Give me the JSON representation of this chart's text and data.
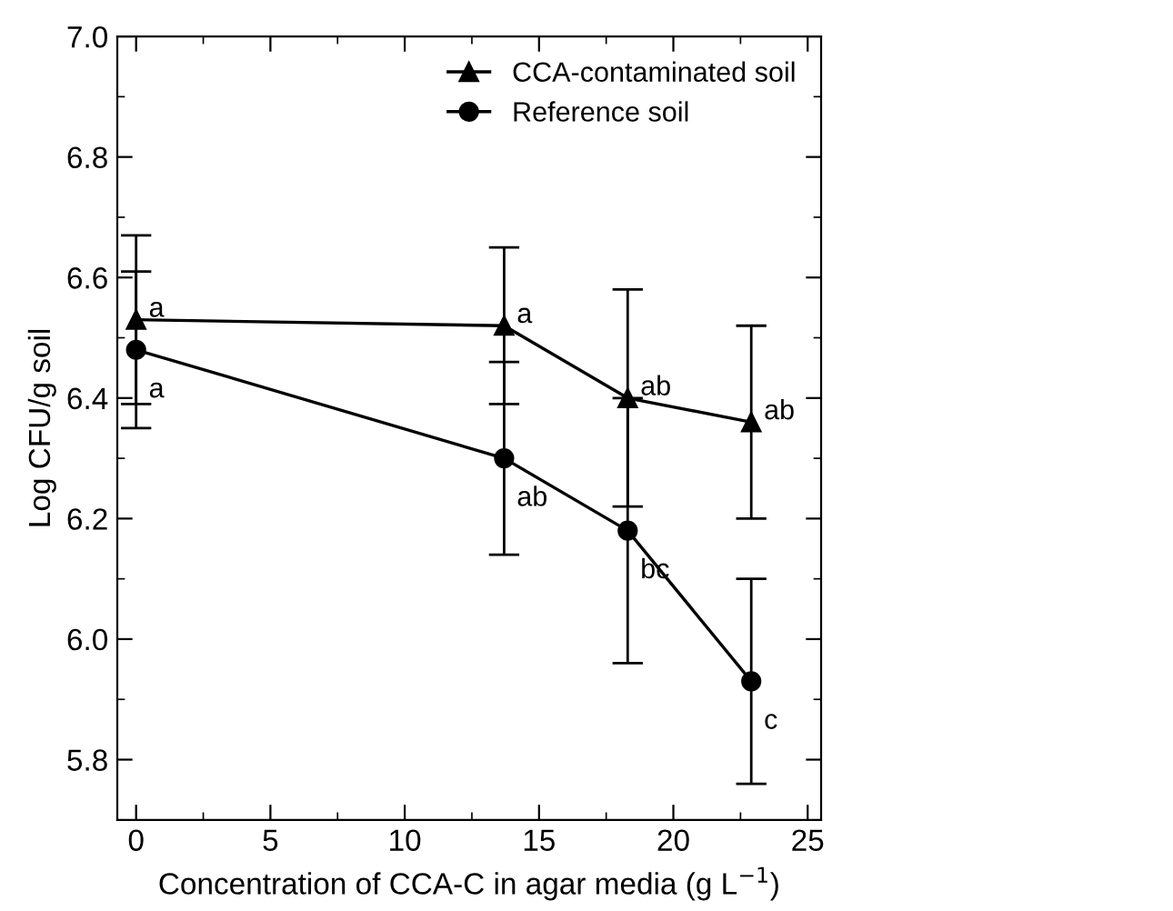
{
  "chart_data": {
    "type": "line",
    "xlabel": "Concentration of CCA-C in agar media (g L$^{−1}$)",
    "ylabel": "Log CFU/g soil",
    "x": [
      0,
      13.7,
      18.3,
      22.9
    ],
    "series": [
      {
        "name": "CCA-contaminated soil",
        "color": "#000000",
        "marker": "triangle",
        "values": [
          6.53,
          6.52,
          6.4,
          6.36
        ],
        "errors": [
          0.14,
          0.13,
          0.18,
          0.16
        ]
      },
      {
        "name": "Reference soil",
        "color": "#000000",
        "marker": "circle",
        "values": [
          6.48,
          6.3,
          6.18,
          5.93
        ],
        "errors": [
          0.13,
          0.16,
          0.22,
          0.17
        ]
      }
    ],
    "annotations": [
      {
        "text": "a",
        "x": 0,
        "y": 6.53
      },
      {
        "text": "a",
        "x": 13.7,
        "y": 6.52
      },
      {
        "text": "ab",
        "x": 18.3,
        "y": 6.4
      },
      {
        "text": "ab",
        "x": 22.9,
        "y": 6.36
      },
      {
        "text": "a",
        "x": 0,
        "y": 6.48
      },
      {
        "text": "ab",
        "x": 13.7,
        "y": 6.3
      },
      {
        "text": "bc",
        "x": 18.3,
        "y": 6.18
      },
      {
        "text": "c",
        "x": 22.9,
        "y": 5.93
      }
    ],
    "xlim": [
      -0.7,
      25.5
    ],
    "xticks": [
      0,
      5,
      10,
      15,
      20,
      25
    ],
    "ylim": [
      5.7,
      7.0
    ],
    "yticks": [
      5.8,
      {
        "value": 6.0,
        "label": "6.0"
      },
      6.2,
      6.4,
      6.6,
      6.8,
      {
        "value": 7.0,
        "label": "7.0"
      }
    ],
    "legend": "top right",
    "grid": false,
    "line_style": "solid"
  }
}
